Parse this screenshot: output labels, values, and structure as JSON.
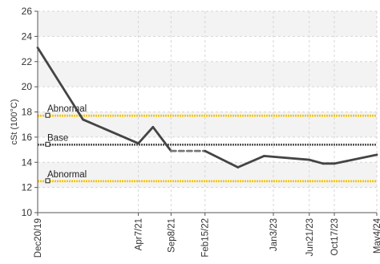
{
  "chart_data": {
    "type": "line",
    "title": "",
    "xlabel": "",
    "ylabel": "cSt (100°C)",
    "ylim": [
      10,
      26
    ],
    "yticks": [
      10,
      12,
      14,
      16,
      18,
      20,
      22,
      24,
      26
    ],
    "xlim": [
      "2019-12-20",
      "2024-05-04"
    ],
    "xtick_labels": [
      "Dec20/19",
      "Apr7/21",
      "Sep8/21",
      "Feb15/22",
      "Jan3/23",
      "Jun21/23",
      "Oct17/23",
      "May4/24"
    ],
    "xtick_dates": [
      "2019-12-20",
      "2021-04-07",
      "2021-09-08",
      "2022-02-15",
      "2023-01-03",
      "2023-06-21",
      "2023-10-17",
      "2024-05-04"
    ],
    "grid": true,
    "series": [
      {
        "values": [
          {
            "x": "2019-12-20",
            "y": 23.1
          },
          {
            "x": "2020-07-20",
            "y": 17.4
          },
          {
            "x": "2021-04-07",
            "y": 15.5
          },
          {
            "x": "2021-06-15",
            "y": 16.8
          },
          {
            "x": "2021-09-08",
            "y": 14.9
          },
          {
            "x": "2022-02-15",
            "y": 14.9
          },
          {
            "x": "2022-07-20",
            "y": 13.6
          },
          {
            "x": "2022-11-20",
            "y": 14.5
          },
          {
            "x": "2023-06-21",
            "y": 14.2
          },
          {
            "x": "2023-08-25",
            "y": 13.9
          },
          {
            "x": "2023-10-17",
            "y": 13.9
          },
          {
            "x": "2024-05-04",
            "y": 14.6
          }
        ],
        "dashed_segments": [
          [
            4,
            5
          ]
        ],
        "color": "#444444"
      }
    ],
    "reference_lines": [
      {
        "label": "Abnormal",
        "value": 17.7,
        "color": "#f5c400",
        "style": "dotted"
      },
      {
        "label": "Base",
        "value": 15.4,
        "color": "#555555",
        "style": "dotted"
      },
      {
        "label": "Abnormal",
        "value": 12.5,
        "color": "#f5c400",
        "style": "dotted"
      }
    ],
    "band_colors": [
      "#ffffff",
      "#f3f3f3"
    ]
  }
}
